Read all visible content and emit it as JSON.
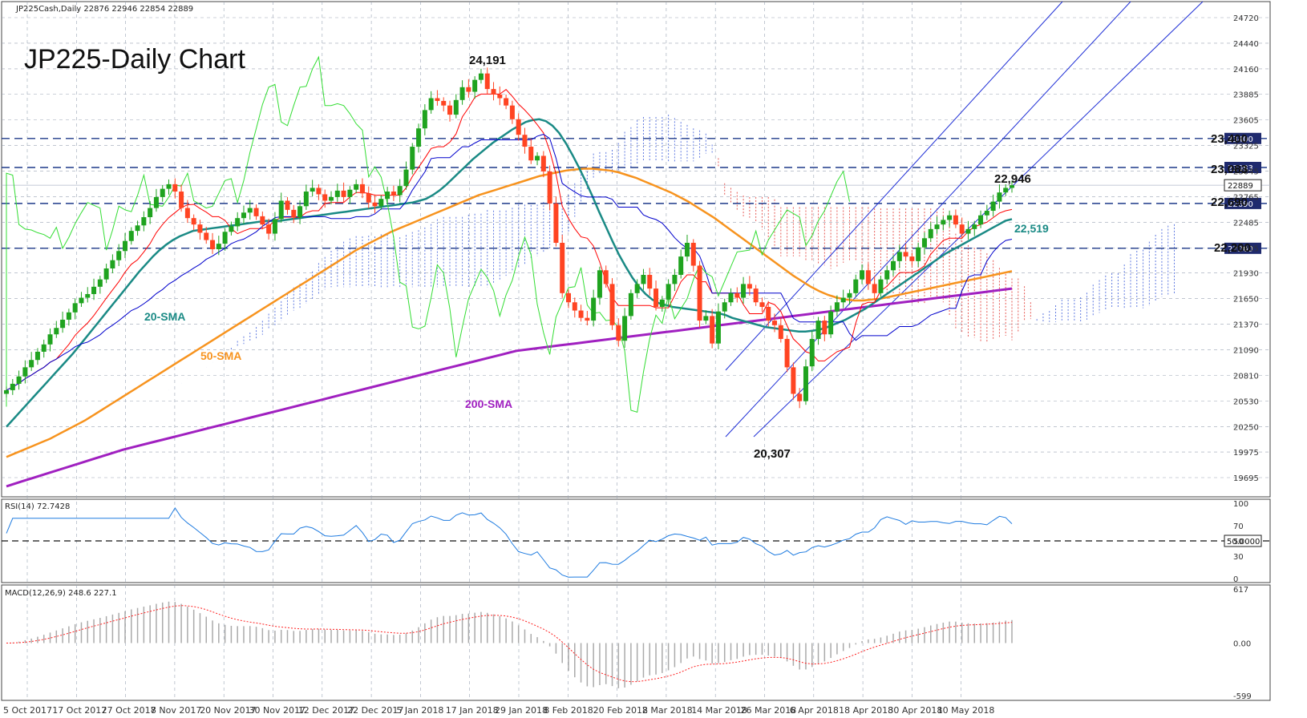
{
  "header": {
    "symbol_info": "JP225Cash,Daily  22876 22946 22854 22889",
    "title": "JP225-Daily Chart"
  },
  "chart_data": {
    "type": "candlestick",
    "title": "JP225-Daily Chart",
    "price_axis": {
      "ticks": [
        24720,
        24440,
        24160,
        23885,
        23605,
        23325,
        23045,
        22765,
        22485,
        22205,
        21930,
        21650,
        21370,
        21090,
        20810,
        20530,
        20250,
        19975,
        19695
      ],
      "range": [
        19695,
        24720
      ]
    },
    "x_axis": {
      "labels": [
        "5 Oct 2017",
        "17 Oct 2017",
        "27 Oct 2017",
        "8 Nov 2017",
        "20 Nov 2017",
        "30 Nov 2017",
        "12 Dec 2017",
        "22 Dec 2017",
        "5 Jan 2018",
        "17 Jan 2018",
        "29 Jan 2018",
        "8 Feb 2018",
        "20 Feb 2018",
        "2 Mar 2018",
        "14 Mar 2018",
        "26 Mar 2018",
        "6 Apr 2018",
        "18 Apr 2018",
        "30 Apr 2018",
        "10 May 2018"
      ]
    },
    "levels": [
      {
        "value": 23400,
        "label": "23,400",
        "tag": "23400"
      },
      {
        "value": 23083,
        "label": "23,083",
        "tag": "23083"
      },
      {
        "value": 22690,
        "label": "22,690",
        "tag": "22690"
      },
      {
        "value": 22200,
        "label": "22,200",
        "tag": "22200"
      }
    ],
    "last_price": {
      "value": 22889,
      "tag": "22889"
    },
    "annotations": [
      {
        "text": "24,191",
        "kind": "peak",
        "value": 24191
      },
      {
        "text": "22,946",
        "kind": "recent-high",
        "value": 22946
      },
      {
        "text": "20,307",
        "kind": "trough",
        "value": 20307
      },
      {
        "text": "22,519",
        "kind": "sma20-value",
        "value": 22519
      }
    ],
    "sma_labels": [
      {
        "text": "20-SMA",
        "color": "#1a8a85"
      },
      {
        "text": "50-SMA",
        "color": "#f7931e"
      },
      {
        "text": "200-SMA",
        "color": "#a020c0"
      }
    ],
    "closes": [
      20650,
      20720,
      20800,
      20900,
      20980,
      21070,
      21150,
      21260,
      21330,
      21420,
      21500,
      21600,
      21660,
      21700,
      21780,
      21860,
      21980,
      22070,
      22170,
      22280,
      22390,
      22450,
      22540,
      22640,
      22760,
      22850,
      22900,
      22820,
      22640,
      22530,
      22460,
      22370,
      22290,
      22190,
      22250,
      22380,
      22440,
      22530,
      22590,
      22640,
      22550,
      22460,
      22360,
      22520,
      22720,
      22620,
      22540,
      22660,
      22820,
      22860,
      22790,
      22720,
      22760,
      22830,
      22760,
      22840,
      22900,
      22800,
      22700,
      22660,
      22740,
      22820,
      22780,
      22880,
      23060,
      23310,
      23510,
      23710,
      23840,
      23810,
      23760,
      23660,
      23820,
      23960,
      23910,
      24040,
      24110,
      23940,
      23880,
      23840,
      23760,
      23610,
      23440,
      23310,
      23160,
      23210,
      23040,
      22690,
      22260,
      21710,
      21610,
      21520,
      21440,
      21410,
      21660,
      21960,
      21810,
      21360,
      21190,
      21460,
      21710,
      21810,
      21910,
      21760,
      21560,
      21640,
      21810,
      21910,
      22110,
      22260,
      22010,
      21410,
      21460,
      21160,
      21510,
      21610,
      21710,
      21660,
      21810,
      21760,
      21610,
      21560,
      21410,
      21360,
      21210,
      20900,
      20610,
      20530,
      20910,
      21210,
      21410,
      21260,
      21510,
      21610,
      21660,
      21710,
      21860,
      21960,
      21810,
      21710,
      21860,
      21960,
      22060,
      22160,
      22110,
      22060,
      22210,
      22310,
      22410,
      22460,
      22510,
      22560,
      22460,
      22360,
      22410,
      22460,
      22560,
      22610,
      22710,
      22810,
      22860,
      22889
    ],
    "sma20": [
      20250,
      20330,
      20410,
      20490,
      20570,
      20650,
      20730,
      20810,
      20890,
      20970,
      21050,
      21140,
      21230,
      21320,
      21410,
      21500,
      21590,
      21680,
      21770,
      21860,
      21950,
      22030,
      22110,
      22180,
      22240,
      22290,
      22330,
      22360,
      22390,
      22400,
      22410,
      22420,
      22430,
      22440,
      22450,
      22460,
      22470,
      22480,
      22490,
      22500,
      22500,
      22500,
      22510,
      22520,
      22530,
      22540,
      22550,
      22560,
      22570,
      22580,
      22590,
      22600,
      22610,
      22620,
      22630,
      22640,
      22650,
      22660,
      22670,
      22680,
      22690,
      22700,
      22720,
      22740,
      22780,
      22830,
      22890,
      22960,
      23030,
      23100,
      23170,
      23230,
      23290,
      23350,
      23400,
      23450,
      23500,
      23540,
      23580,
      23600,
      23610,
      23590,
      23540,
      23460,
      23350,
      23220,
      23080,
      22930,
      22770,
      22600,
      22440,
      22280,
      22130,
      22000,
      21880,
      21780,
      21700,
      21640,
      21600,
      21580,
      21560,
      21550,
      21540,
      21530,
      21520,
      21510,
      21500,
      21490,
      21470,
      21440,
      21420,
      21400,
      21380,
      21360,
      21340,
      21330,
      21320,
      21310,
      21300,
      21290,
      21290,
      21300,
      21310,
      21330,
      21360,
      21390,
      21420,
      21460,
      21500,
      21540,
      21590,
      21640,
      21690,
      21740,
      21790,
      21840,
      21890,
      21940,
      21990,
      22040,
      22090,
      22140,
      22180,
      22220,
      22260,
      22300,
      22340,
      22380,
      22420,
      22460,
      22500,
      22519
    ],
    "sma50": [
      19920,
      19960,
      20000,
      20040,
      20080,
      20120,
      20170,
      20220,
      20270,
      20320,
      20380,
      20440,
      20500,
      20560,
      20620,
      20680,
      20740,
      20800,
      20860,
      20920,
      20980,
      21040,
      21100,
      21160,
      21220,
      21280,
      21340,
      21400,
      21460,
      21520,
      21580,
      21640,
      21700,
      21760,
      21820,
      21880,
      21940,
      22000,
      22060,
      22120,
      22180,
      22230,
      22280,
      22330,
      22380,
      22420,
      22460,
      22500,
      22540,
      22580,
      22620,
      22660,
      22700,
      22740,
      22780,
      22810,
      22840,
      22870,
      22900,
      22930,
      22960,
      22990,
      23010,
      23030,
      23050,
      23060,
      23070,
      23070,
      23060,
      23050,
      23030,
      23000,
      22970,
      22930,
      22890,
      22850,
      22810,
      22760,
      22710,
      22650,
      22590,
      22530,
      22460,
      22390,
      22320,
      22250,
      22180,
      22110,
      22040,
      21970,
      21900,
      21840,
      21780,
      21730,
      21690,
      21660,
      21640,
      21630,
      21630,
      21640,
      21650,
      21670,
      21690,
      21710,
      21730,
      21750,
      21770,
      21790,
      21810,
      21830,
      21850,
      21870,
      21890,
      21910,
      21930,
      21950
    ],
    "sma200": [
      19600,
      19650,
      19700,
      19750,
      19800,
      19850,
      19900,
      19950,
      20000,
      20040,
      20080,
      20120,
      20160,
      20200,
      20240,
      20280,
      20320,
      20360,
      20400,
      20440,
      20480,
      20520,
      20560,
      20600,
      20640,
      20680,
      20720,
      20760,
      20800,
      20840,
      20880,
      20920,
      20960,
      21000,
      21040,
      21080,
      21100,
      21120,
      21140,
      21160,
      21180,
      21200,
      21220,
      21240,
      21260,
      21280,
      21300,
      21320,
      21340,
      21360,
      21380,
      21400,
      21420,
      21440,
      21460,
      21480,
      21500,
      21520,
      21540,
      21560,
      21580,
      21600,
      21620,
      21640,
      21660,
      21680,
      21700,
      21720,
      21740,
      21760
    ],
    "rsi": {
      "label": "RSI(14) 72.7428",
      "value": 72.7428,
      "ticks": [
        100,
        70,
        50,
        30,
        0
      ],
      "reference": "50.0000"
    },
    "macd": {
      "label": "MACD(12,26,9) 248.6 227.1",
      "macd": 248.6,
      "signal": 227.1,
      "ticks": [
        617,
        0.0,
        -599
      ]
    }
  },
  "colors": {
    "bull": "#1fa31f",
    "bear": "#ff4422",
    "sma20": "#1a8a85",
    "sma50": "#f7931e",
    "sma200": "#a020c0",
    "tenkan": "#ff0000",
    "kijun": "#0000cc",
    "chikou": "#33dd33",
    "level_line": "#1f3a8a",
    "channel": "#1f2fd6"
  }
}
